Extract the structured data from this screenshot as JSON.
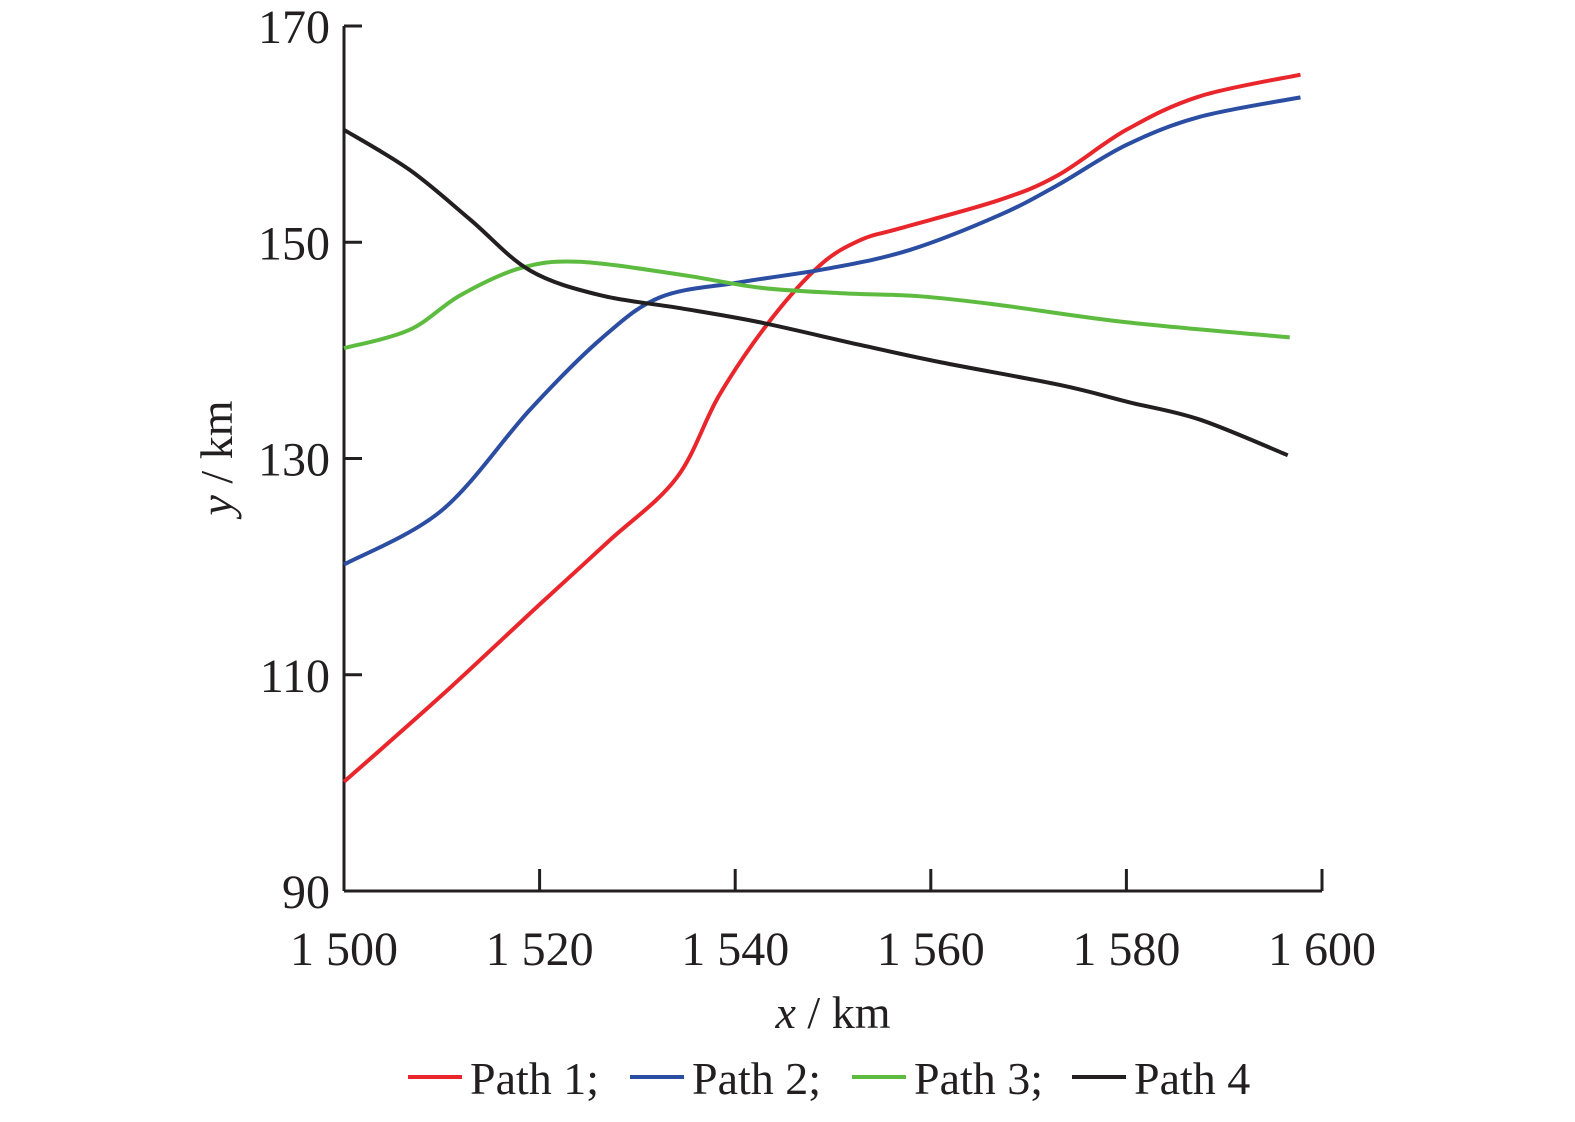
{
  "chart_data": {
    "type": "line",
    "title": "",
    "xlabel_var": "x",
    "xlabel_unit": " / km",
    "ylabel_var": "y",
    "ylabel_unit": " / km",
    "xlim": [
      1500,
      1600
    ],
    "ylim": [
      90,
      170
    ],
    "xticks": [
      1500,
      1520,
      1540,
      1560,
      1580,
      1600
    ],
    "xtick_labels": [
      "1 500",
      "1 520",
      "1 540",
      "1 560",
      "1 580",
      "1 600"
    ],
    "yticks": [
      90,
      110,
      130,
      150,
      170
    ],
    "ytick_labels": [
      "90",
      "110",
      "130",
      "150",
      "170"
    ],
    "grid": false,
    "legend_placement": "bottom",
    "series": [
      {
        "name": "Path 1",
        "legend_label": "Path 1;",
        "color": "#e8262b",
        "x": [
          1500,
          1510,
          1520,
          1527,
          1534,
          1538.4,
          1543.6,
          1548.7,
          1552.8,
          1556.9,
          1567,
          1573,
          1580,
          1587.5,
          1597.8
        ],
        "y": [
          100.1,
          108.1,
          116.5,
          122.3,
          128.2,
          135.9,
          142.8,
          147.9,
          150.2,
          151.3,
          153.9,
          156.2,
          160.4,
          163.5,
          165.5
        ]
      },
      {
        "name": "Path 2",
        "legend_label": "Path 2;",
        "color": "#2b4ea2",
        "x": [
          1500,
          1510,
          1519,
          1526.2,
          1532.3,
          1540.5,
          1549.7,
          1557.9,
          1567,
          1573,
          1580,
          1587.5,
          1597.8
        ],
        "y": [
          120.2,
          125.2,
          134.5,
          141,
          144.9,
          146.3,
          147.6,
          149.3,
          152.5,
          155.3,
          159,
          161.6,
          163.4
        ]
      },
      {
        "name": "Path 3",
        "legend_label": "Path 3;",
        "color": "#5dbb3f",
        "x": [
          1500,
          1506.7,
          1511.9,
          1518,
          1524,
          1534.4,
          1542.5,
          1550.6,
          1558.9,
          1567,
          1580,
          1596.7
        ],
        "y": [
          140.2,
          141.9,
          145.1,
          147.6,
          148.2,
          147,
          145.8,
          145.3,
          145,
          144.2,
          142.6,
          141.2
        ]
      },
      {
        "name": "Path 4",
        "legend_label": "Path 4",
        "color": "#231f20",
        "x": [
          1500,
          1506.7,
          1512.9,
          1519,
          1526.2,
          1534.4,
          1542.5,
          1552.8,
          1561,
          1573.2,
          1580.3,
          1587.5,
          1596.5
        ],
        "y": [
          160.4,
          156.7,
          152.1,
          147.4,
          145.1,
          143.9,
          142.6,
          140.5,
          138.9,
          136.8,
          135.2,
          133.6,
          130.3
        ]
      }
    ]
  }
}
